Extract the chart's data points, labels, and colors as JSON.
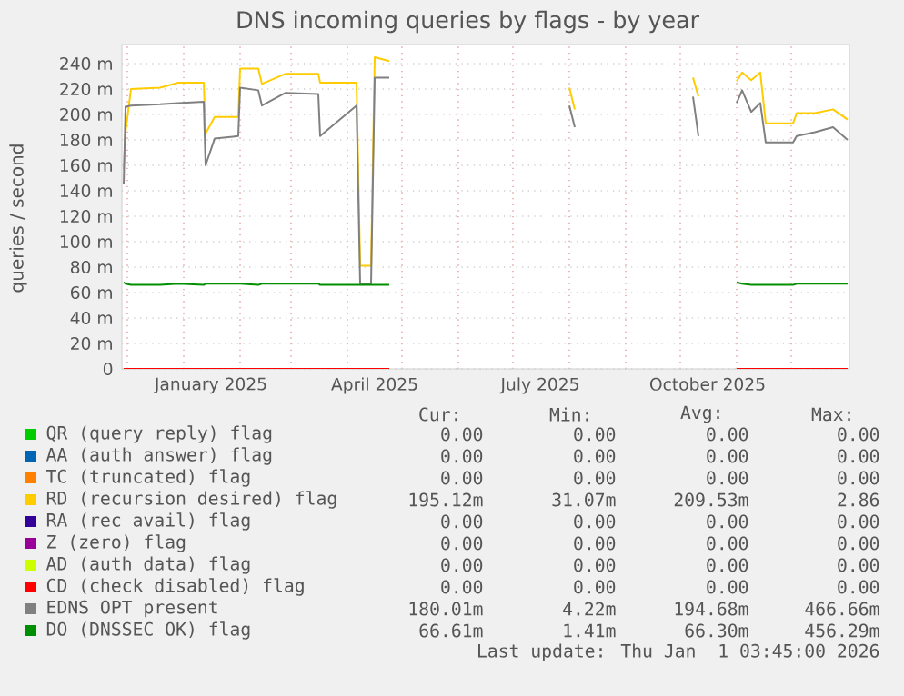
{
  "chart_data": {
    "type": "line",
    "title": "DNS incoming queries by flags - by year",
    "ylabel": "queries / second",
    "x": [
      "2024-11-29",
      "2024-11-30",
      "2024-12-03",
      "2024-12-19",
      "2024-12-29",
      "2025-01-12",
      "2025-01-13",
      "2025-01-18",
      "2025-01-31",
      "2025-02-01",
      "2025-02-11",
      "2025-02-13",
      "2025-02-26",
      "2025-03-16",
      "2025-03-17",
      "2025-04-06",
      "2025-04-08",
      "2025-04-14",
      "2025-04-16",
      "2025-04-24",
      "2025-04-25",
      "2025-08-01",
      "2025-08-04",
      "2025-08-05",
      "2025-10-08",
      "2025-10-11",
      "2025-10-12",
      "2025-11-01",
      "2025-11-04",
      "2025-11-09",
      "2025-11-14",
      "2025-11-17",
      "2025-12-02",
      "2025-12-04",
      "2025-12-14",
      "2025-12-24",
      "2026-01-01"
    ],
    "series": [
      {
        "name": "QR (query reply) flag",
        "color": "#00cc00",
        "values": [
          null,
          null,
          null,
          null,
          null,
          null,
          null,
          null,
          null,
          null,
          null,
          null,
          null,
          null,
          null,
          null,
          null,
          null,
          null,
          null,
          null,
          null,
          null,
          null,
          null,
          null,
          null,
          null,
          null,
          null,
          null,
          null,
          null,
          null,
          null,
          null,
          null
        ]
      },
      {
        "name": "AA (auth answer) flag",
        "color": "#0066b3",
        "values": [
          null,
          null,
          null,
          null,
          null,
          null,
          null,
          null,
          null,
          null,
          null,
          null,
          null,
          null,
          null,
          null,
          null,
          null,
          null,
          null,
          null,
          null,
          null,
          null,
          null,
          null,
          null,
          null,
          null,
          null,
          null,
          null,
          null,
          null,
          null,
          null,
          null
        ]
      },
      {
        "name": "TC (truncated) flag",
        "color": "#ff8000",
        "values": [
          null,
          null,
          null,
          null,
          null,
          null,
          null,
          null,
          null,
          null,
          null,
          null,
          null,
          null,
          null,
          null,
          null,
          null,
          null,
          null,
          null,
          null,
          null,
          null,
          null,
          null,
          null,
          null,
          null,
          null,
          null,
          null,
          null,
          null,
          null,
          null,
          null
        ]
      },
      {
        "name": "RD (recursion desired) flag",
        "color": "#ffcc00",
        "values": [
          157,
          186,
          220,
          221,
          225,
          225,
          185,
          198,
          198,
          236,
          236,
          224,
          232,
          232,
          225,
          225,
          81,
          81,
          245,
          242,
          null,
          221,
          204,
          null,
          229,
          214,
          null,
          226,
          233,
          227,
          233,
          193,
          193,
          201,
          201,
          204,
          196
        ]
      },
      {
        "name": "RA (rec avail) flag",
        "color": "#330099",
        "values": [
          null,
          null,
          null,
          null,
          null,
          null,
          null,
          null,
          null,
          null,
          null,
          null,
          null,
          null,
          null,
          null,
          null,
          null,
          null,
          null,
          null,
          null,
          null,
          null,
          null,
          null,
          null,
          null,
          null,
          null,
          null,
          null,
          null,
          null,
          null,
          null,
          null
        ]
      },
      {
        "name": "Z (zero) flag",
        "color": "#990099",
        "values": [
          null,
          null,
          null,
          null,
          null,
          null,
          null,
          null,
          null,
          null,
          null,
          null,
          null,
          null,
          null,
          null,
          null,
          null,
          null,
          null,
          null,
          null,
          null,
          null,
          null,
          null,
          null,
          null,
          null,
          null,
          null,
          null,
          null,
          null,
          null,
          null,
          null
        ]
      },
      {
        "name": "AD (auth data) flag",
        "color": "#ccff00",
        "values": [
          null,
          null,
          null,
          null,
          null,
          null,
          null,
          null,
          null,
          null,
          null,
          null,
          null,
          null,
          null,
          null,
          null,
          null,
          null,
          null,
          null,
          null,
          null,
          null,
          null,
          null,
          null,
          null,
          null,
          null,
          null,
          null,
          null,
          null,
          null,
          null,
          null
        ]
      },
      {
        "name": "CD (check disabled) flag",
        "color": "#ff0000",
        "values": [
          0,
          0,
          0,
          0,
          0,
          0,
          0,
          0,
          0,
          0,
          0,
          0,
          0,
          0,
          0,
          0,
          0,
          0,
          0,
          0,
          null,
          null,
          null,
          null,
          null,
          null,
          null,
          0,
          0,
          0,
          0,
          0,
          0,
          0,
          0,
          0,
          0
        ]
      },
      {
        "name": "EDNS OPT present",
        "color": "#808080",
        "values": [
          145,
          206,
          207,
          208,
          209,
          210,
          160,
          181,
          183,
          221,
          219,
          207,
          217,
          216,
          183,
          207,
          67,
          67,
          229,
          229,
          null,
          207,
          190,
          null,
          214,
          183,
          null,
          209,
          219,
          202,
          209,
          178,
          178,
          183,
          186,
          190,
          180
        ]
      },
      {
        "name": "DO (DNSSEC OK) flag",
        "color": "#008f00",
        "values": [
          68,
          67,
          66,
          66,
          67,
          66,
          67,
          67,
          67,
          67,
          66,
          67,
          67,
          67,
          66,
          66,
          66,
          66,
          66,
          66,
          null,
          null,
          null,
          null,
          null,
          null,
          null,
          68,
          67,
          66,
          66,
          66,
          66,
          67,
          67,
          67,
          67
        ]
      }
    ],
    "xlim": [
      "2024-11-28",
      "2026-01-02"
    ],
    "xticks": [
      {
        "value": "2024-12-01",
        "label": null
      },
      {
        "value": "2025-01-01",
        "label": null
      },
      {
        "value": "2025-02-01",
        "label": null
      },
      {
        "value": "2025-03-01",
        "label": null
      },
      {
        "value": "2025-04-01",
        "label": null
      },
      {
        "value": "2025-05-01",
        "label": null
      },
      {
        "value": "2025-06-01",
        "label": null
      },
      {
        "value": "2025-07-01",
        "label": null
      },
      {
        "value": "2025-08-01",
        "label": null
      },
      {
        "value": "2025-09-01",
        "label": null
      },
      {
        "value": "2025-10-01",
        "label": null
      },
      {
        "value": "2025-11-01",
        "label": null
      },
      {
        "value": "2025-12-01",
        "label": null
      },
      {
        "value": "2025-01-16",
        "label": "January 2025"
      },
      {
        "value": "2025-04-16",
        "label": "April 2025"
      },
      {
        "value": "2025-07-16",
        "label": "July 2025"
      },
      {
        "value": "2025-10-16",
        "label": "October 2025"
      }
    ],
    "ylim": [
      0,
      255
    ],
    "yticks": [
      0,
      {
        "value": 20,
        "label": "20 m"
      },
      {
        "value": 40,
        "label": "40 m"
      },
      {
        "value": 60,
        "label": "60 m"
      },
      {
        "value": 80,
        "label": "80 m"
      },
      {
        "value": 100,
        "label": "100 m"
      },
      {
        "value": 120,
        "label": "120 m"
      },
      {
        "value": 140,
        "label": "140 m"
      },
      {
        "value": 160,
        "label": "160 m"
      },
      {
        "value": 180,
        "label": "180 m"
      },
      {
        "value": 200,
        "label": "200 m"
      },
      {
        "value": 220,
        "label": "220 m"
      },
      {
        "value": 240,
        "label": "240 m"
      }
    ],
    "grid": true,
    "legend": "bottom",
    "annotations": [
      "Cur:",
      "Min:",
      "Avg:",
      "Max:",
      "0.00",
      "0.00",
      "0.00",
      "0.00",
      "0.00",
      "0.00",
      "0.00",
      "0.00",
      "0.00",
      "0.00",
      "0.00",
      "0.00",
      "195.12m",
      "31.07m",
      "209.53m",
      "2.86",
      "0.00",
      "0.00",
      "0.00",
      "0.00",
      "0.00",
      "0.00",
      "0.00",
      "0.00",
      "0.00",
      "0.00",
      "0.00",
      "0.00",
      "0.00",
      "0.00",
      "0.00",
      "0.00",
      "180.01m",
      "4.22m",
      "194.68m",
      "466.66m",
      "66.61m",
      "1.41m",
      "66.30m",
      "456.29m",
      "Last update: Thu Jan  1 03:45:00 2026"
    ]
  }
}
